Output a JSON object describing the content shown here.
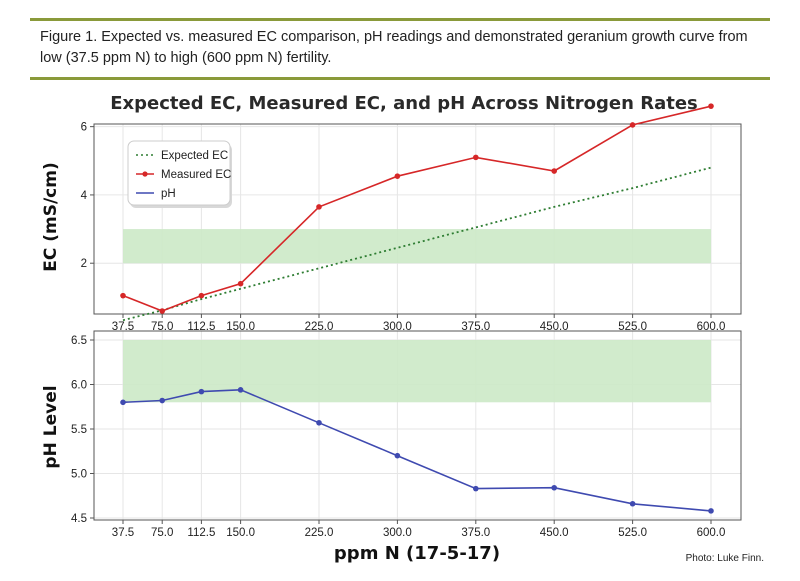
{
  "figure": {
    "caption": "Figure 1. Expected vs. measured EC comparison, pH readings and demonstrated geranium growth curve from low (37.5 ppm N) to high (600 ppm N) fertility.",
    "credit": "Photo: Luke Finn."
  },
  "chart_data": {
    "type": "line",
    "title": "Expected EC, Measured EC, and pH Across Nitrogen Rates",
    "xlabel": "ppm N (17-5-17)",
    "x": [
      37.5,
      75.0,
      112.5,
      150.0,
      225.0,
      300.0,
      375.0,
      450.0,
      525.0,
      600.0
    ],
    "x_tick_labels": [
      "37.5",
      "75.0",
      "112.5",
      "150.0",
      "225.0",
      "300.0",
      "375.0",
      "450.0",
      "525.0",
      "600.0"
    ],
    "panels": [
      {
        "ylabel": "EC (mS/cm)",
        "ylim": [
          0,
          7
        ],
        "yticks": [
          2,
          4,
          6
        ],
        "target_band": [
          2.0,
          3.0
        ],
        "band_color": "#cce9c6",
        "grid": true,
        "legend": "top-left",
        "series": [
          {
            "name": "Expected EC",
            "style": "dotted",
            "color": "#2e7d32",
            "values": [
              0.33,
              0.62,
              0.95,
              1.25,
              1.85,
              2.45,
              3.05,
              3.65,
              4.2,
              4.8
            ]
          },
          {
            "name": "Measured EC",
            "style": "solid-markers",
            "color": "#d62728",
            "values": [
              1.05,
              0.6,
              1.05,
              1.4,
              3.65,
              4.55,
              5.1,
              4.7,
              6.05,
              6.6
            ]
          },
          {
            "name": "pH",
            "style": "solid",
            "color": "#3f4ab0",
            "values": []
          }
        ]
      },
      {
        "ylabel": "pH Level",
        "ylim": [
          4.5,
          6.5
        ],
        "yticks": [
          4.5,
          5.0,
          5.5,
          6.0,
          6.5
        ],
        "ytick_labels": [
          "4.5",
          "5.0",
          "5.5",
          "6.0",
          "6.5"
        ],
        "target_band": [
          5.8,
          6.5
        ],
        "band_color": "#cce9c6",
        "grid": true,
        "series": [
          {
            "name": "pH",
            "style": "solid-markers",
            "color": "#3f4ab0",
            "values": [
              5.8,
              5.82,
              5.92,
              5.94,
              5.57,
              5.2,
              4.83,
              4.84,
              4.66,
              4.58
            ]
          }
        ]
      }
    ]
  }
}
